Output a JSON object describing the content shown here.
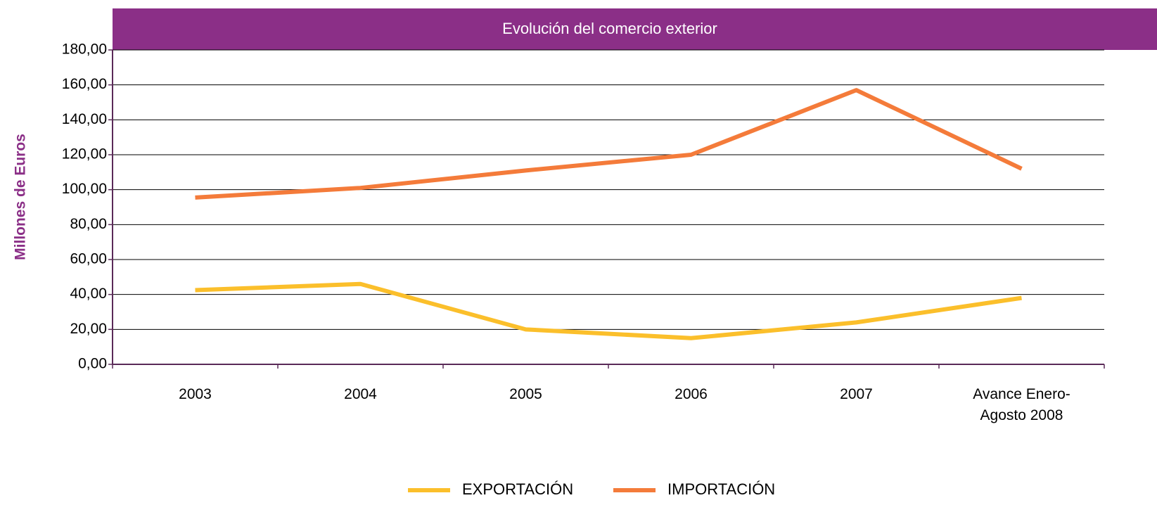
{
  "chart_data": {
    "type": "line",
    "title": "Evolución del comercio exterior",
    "y_label": "Millones de Euros",
    "categories": [
      "2003",
      "2004",
      "2005",
      "2006",
      "2007",
      "Avance Enero-Agosto 2008"
    ],
    "series": [
      {
        "name": "EXPORTACIÓN",
        "color": "#fbbf2b",
        "values": [
          42.5,
          46,
          20,
          15,
          24,
          38
        ]
      },
      {
        "name": "IMPORTACIÓN",
        "color": "#f47b3a",
        "values": [
          95.5,
          101,
          111,
          120,
          157,
          112
        ]
      }
    ],
    "ylim": [
      0,
      180
    ],
    "yticks": [
      {
        "value": 0,
        "label": "0,00"
      },
      {
        "value": 20,
        "label": "20,00"
      },
      {
        "value": 40,
        "label": "40,00"
      },
      {
        "value": 60,
        "label": "60,00"
      },
      {
        "value": 80,
        "label": "80,00"
      },
      {
        "value": 100,
        "label": "100,00"
      },
      {
        "value": 120,
        "label": "120,00"
      },
      {
        "value": 140,
        "label": "140,00"
      },
      {
        "value": 160,
        "label": "160,00"
      },
      {
        "value": 180,
        "label": "180,00"
      }
    ],
    "grid": true,
    "legend": "bottom"
  }
}
